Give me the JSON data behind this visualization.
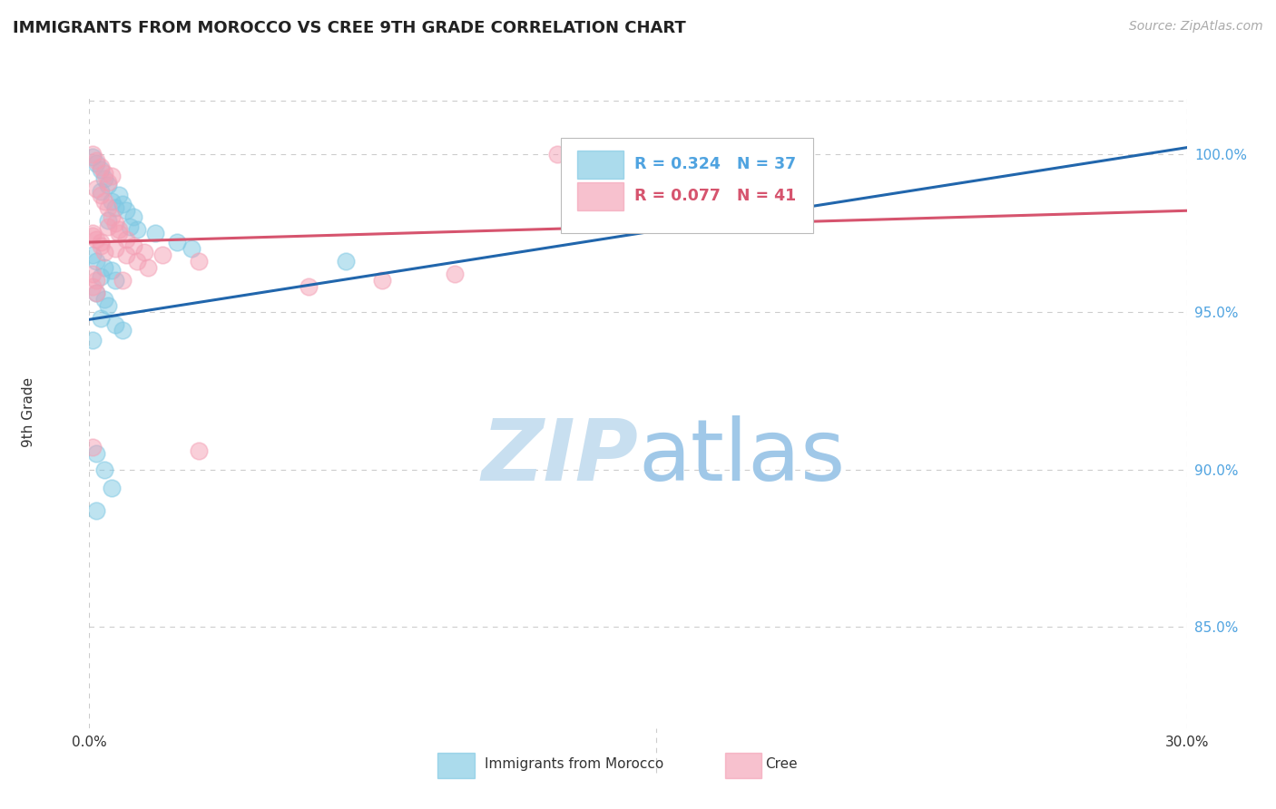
{
  "title": "IMMIGRANTS FROM MOROCCO VS CREE 9TH GRADE CORRELATION CHART",
  "source": "Source: ZipAtlas.com",
  "ylabel": "9th Grade",
  "yaxis_labels": [
    "100.0%",
    "95.0%",
    "90.0%",
    "85.0%"
  ],
  "yaxis_values": [
    1.0,
    0.95,
    0.9,
    0.85
  ],
  "xlim": [
    0.0,
    0.3
  ],
  "ylim": [
    0.818,
    1.018
  ],
  "legend_blue_r": "R = 0.324",
  "legend_blue_n": "N = 37",
  "legend_pink_r": "R = 0.077",
  "legend_pink_n": "N = 41",
  "blue_color": "#7ec8e3",
  "pink_color": "#f4a0b5",
  "blue_line_color": "#2166ac",
  "pink_line_color": "#d6546e",
  "blue_scatter": [
    [
      0.001,
      0.999
    ],
    [
      0.002,
      0.997
    ],
    [
      0.003,
      0.995
    ],
    [
      0.004,
      0.992
    ],
    [
      0.005,
      0.99
    ],
    [
      0.003,
      0.988
    ],
    [
      0.006,
      0.985
    ],
    [
      0.007,
      0.983
    ],
    [
      0.008,
      0.987
    ],
    [
      0.009,
      0.984
    ],
    [
      0.01,
      0.982
    ],
    [
      0.005,
      0.979
    ],
    [
      0.011,
      0.977
    ],
    [
      0.012,
      0.98
    ],
    [
      0.013,
      0.976
    ],
    [
      0.018,
      0.975
    ],
    [
      0.024,
      0.972
    ],
    [
      0.028,
      0.97
    ],
    [
      0.001,
      0.968
    ],
    [
      0.002,
      0.966
    ],
    [
      0.004,
      0.964
    ],
    [
      0.006,
      0.963
    ],
    [
      0.003,
      0.961
    ],
    [
      0.007,
      0.96
    ],
    [
      0.002,
      0.956
    ],
    [
      0.004,
      0.954
    ],
    [
      0.005,
      0.952
    ],
    [
      0.003,
      0.948
    ],
    [
      0.007,
      0.946
    ],
    [
      0.009,
      0.944
    ],
    [
      0.002,
      0.905
    ],
    [
      0.004,
      0.9
    ],
    [
      0.006,
      0.894
    ],
    [
      0.002,
      0.887
    ],
    [
      0.07,
      0.966
    ],
    [
      0.16,
      0.999
    ],
    [
      0.001,
      0.941
    ]
  ],
  "pink_scatter": [
    [
      0.001,
      1.0
    ],
    [
      0.002,
      0.998
    ],
    [
      0.003,
      0.996
    ],
    [
      0.004,
      0.994
    ],
    [
      0.005,
      0.991
    ],
    [
      0.006,
      0.993
    ],
    [
      0.002,
      0.989
    ],
    [
      0.003,
      0.987
    ],
    [
      0.004,
      0.985
    ],
    [
      0.005,
      0.983
    ],
    [
      0.006,
      0.98
    ],
    [
      0.007,
      0.978
    ],
    [
      0.008,
      0.976
    ],
    [
      0.001,
      0.974
    ],
    [
      0.003,
      0.972
    ],
    [
      0.007,
      0.97
    ],
    [
      0.01,
      0.968
    ],
    [
      0.013,
      0.966
    ],
    [
      0.016,
      0.964
    ],
    [
      0.02,
      0.968
    ],
    [
      0.001,
      0.975
    ],
    [
      0.002,
      0.973
    ],
    [
      0.003,
      0.971
    ],
    [
      0.004,
      0.969
    ],
    [
      0.001,
      0.962
    ],
    [
      0.002,
      0.96
    ],
    [
      0.03,
      0.966
    ],
    [
      0.08,
      0.96
    ],
    [
      0.1,
      0.962
    ],
    [
      0.001,
      0.907
    ],
    [
      0.03,
      0.906
    ],
    [
      0.128,
      1.0
    ],
    [
      0.001,
      0.958
    ],
    [
      0.002,
      0.956
    ],
    [
      0.009,
      0.96
    ],
    [
      0.06,
      0.958
    ],
    [
      0.005,
      0.977
    ],
    [
      0.008,
      0.975
    ],
    [
      0.01,
      0.973
    ],
    [
      0.012,
      0.971
    ],
    [
      0.015,
      0.969
    ]
  ],
  "blue_line_x": [
    0.0,
    0.3
  ],
  "blue_line_y": [
    0.9475,
    1.002
  ],
  "pink_line_x": [
    0.0,
    0.3
  ],
  "pink_line_y": [
    0.972,
    0.982
  ],
  "watermark_zip": "ZIP",
  "watermark_atlas": "atlas",
  "watermark_color_zip": "#c8dff0",
  "watermark_color_atlas": "#a0c8e8",
  "background_color": "#ffffff",
  "grid_color": "#cccccc"
}
